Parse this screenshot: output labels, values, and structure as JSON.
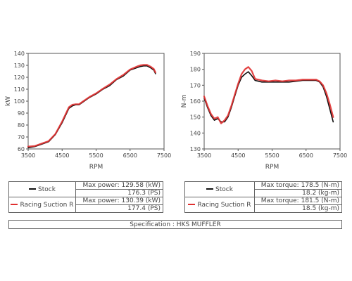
{
  "chart_data": [
    {
      "type": "line",
      "xlabel": "RPM",
      "ylabel": "kW",
      "xlim": [
        3500,
        7500
      ],
      "ylim": [
        60,
        140
      ],
      "xticks": [
        3500,
        4500,
        5500,
        6500,
        7500
      ],
      "yticks": [
        60,
        70,
        80,
        90,
        100,
        110,
        120,
        130,
        140
      ],
      "grid": false,
      "series": [
        {
          "name": "Stock",
          "color": "#111111",
          "x": [
            3500,
            3700,
            3900,
            4100,
            4300,
            4500,
            4600,
            4700,
            4800,
            4900,
            5000,
            5100,
            5300,
            5500,
            5700,
            5900,
            6100,
            6300,
            6500,
            6700,
            6800,
            6900,
            7000,
            7100,
            7200,
            7250
          ],
          "y": [
            61,
            62,
            64,
            66,
            72,
            82,
            88,
            94,
            96,
            97,
            97,
            99,
            103,
            106,
            110,
            113,
            118,
            121,
            126,
            128,
            129,
            129.5,
            129.5,
            128,
            126,
            123
          ]
        },
        {
          "name": "Racing Suction R",
          "color": "#e03030",
          "x": [
            3500,
            3700,
            3900,
            4100,
            4300,
            4500,
            4600,
            4700,
            4800,
            4900,
            5000,
            5100,
            5300,
            5500,
            5700,
            5900,
            6100,
            6300,
            6500,
            6700,
            6800,
            6900,
            7000,
            7100,
            7200,
            7250
          ],
          "y": [
            62,
            62.5,
            64.5,
            66.5,
            72.5,
            83,
            89,
            95,
            97,
            97.5,
            97.5,
            99.5,
            103.5,
            106.5,
            110.5,
            114,
            118.5,
            122,
            126.5,
            129,
            130,
            130.4,
            130.4,
            129,
            127,
            124
          ]
        }
      ]
    },
    {
      "type": "line",
      "xlabel": "RPM",
      "ylabel": "N-m",
      "xlim": [
        3500,
        7500
      ],
      "ylim": [
        130,
        190
      ],
      "xticks": [
        3500,
        4500,
        5500,
        6500,
        7500
      ],
      "yticks": [
        130,
        140,
        150,
        160,
        170,
        180,
        190
      ],
      "grid": false,
      "series": [
        {
          "name": "Stock",
          "color": "#111111",
          "x": [
            3500,
            3600,
            3700,
            3800,
            3900,
            4000,
            4100,
            4200,
            4300,
            4400,
            4500,
            4600,
            4700,
            4800,
            4900,
            5000,
            5200,
            5400,
            5600,
            5800,
            6000,
            6200,
            6400,
            6600,
            6800,
            6900,
            7000,
            7100,
            7200,
            7300
          ],
          "y": [
            162,
            156,
            151,
            148,
            149,
            147,
            147,
            150,
            156,
            163,
            170,
            175,
            177,
            178.5,
            176,
            173,
            172,
            172,
            172,
            172,
            172,
            172.5,
            173,
            173,
            173,
            172,
            169,
            163,
            155,
            147
          ]
        },
        {
          "name": "Racing Suction R",
          "color": "#e03030",
          "x": [
            3500,
            3600,
            3700,
            3800,
            3900,
            4000,
            4100,
            4200,
            4300,
            4400,
            4500,
            4600,
            4700,
            4800,
            4900,
            5000,
            5200,
            5400,
            5600,
            5800,
            6000,
            6200,
            6400,
            6600,
            6800,
            6900,
            7000,
            7100,
            7200,
            7300
          ],
          "y": [
            163,
            157,
            152,
            149,
            150,
            146,
            148,
            151,
            157,
            164,
            171,
            177,
            180,
            181.5,
            179,
            174,
            173,
            172.5,
            173,
            172.5,
            173,
            173,
            173.5,
            173.5,
            173.5,
            172.5,
            170,
            165,
            158,
            150
          ]
        }
      ]
    }
  ],
  "tables": {
    "power": {
      "rows": [
        {
          "name": "Stock",
          "color": "#111111",
          "label1": "Max power:",
          "val1": "129.58 (kW)",
          "val2": "176.3 (PS)"
        },
        {
          "name": "Racing Suction R",
          "color": "#e03030",
          "label1": "Max power:",
          "val1": "130.39 (kW)",
          "val2": "177.4 (PS)"
        }
      ]
    },
    "torque": {
      "rows": [
        {
          "name": "Stock",
          "color": "#111111",
          "label1": "Max torque:",
          "val1": "178.5 (N-m)",
          "val2": "18.2 (kg-m)"
        },
        {
          "name": "Racing Suction R",
          "color": "#e03030",
          "label1": "Max torque:",
          "val1": "181.5 (N-m)",
          "val2": "18.5 (kg-m)"
        }
      ]
    }
  },
  "specification": "Specification : HKS MUFFLER"
}
